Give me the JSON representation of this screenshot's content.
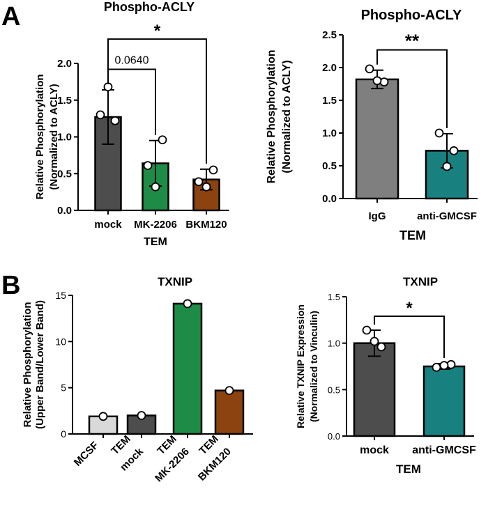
{
  "panel_labels": [
    "A",
    "B"
  ],
  "chart_data": [
    {
      "id": "a1",
      "type": "bar",
      "title": "Phospho-ACLY",
      "ylabel": "Relative Phosphorylation",
      "ylabel2": "(Normalized to ACLY)",
      "xlabel": "TEM",
      "categories": [
        "mock",
        "MK-2206",
        "BKM120"
      ],
      "values": [
        1.27,
        0.64,
        0.42
      ],
      "errors": [
        0.37,
        0.31,
        0.14
      ],
      "points": [
        [
          1.3,
          1.22,
          1.68
        ],
        [
          0.61,
          0.96,
          0.32
        ],
        [
          0.39,
          0.55,
          0.32
        ]
      ],
      "colors": [
        "#4d4d4d",
        "#1e8c46",
        "#8c4310"
      ],
      "ylim": [
        0,
        2.0
      ],
      "yticks": [
        "0.0",
        "0.5",
        "1.0",
        "1.5",
        "2.0"
      ],
      "yticks_values": [
        0,
        0.5,
        1.0,
        1.5,
        2.0
      ],
      "annotations": [
        {
          "from": 0,
          "to": 1,
          "text": "0.0640",
          "level": 1.92,
          "star": false
        },
        {
          "from": 0,
          "to": 2,
          "text": "*",
          "level": 2.33,
          "star": true
        }
      ]
    },
    {
      "id": "a2",
      "type": "bar",
      "title": "Phospho-ACLY",
      "ylabel": "Relative Phosphorylation",
      "ylabel2": "(Normalized to ACLY)",
      "xlabel": "TEM",
      "categories": [
        "IgG",
        "anti-GMCSF"
      ],
      "values": [
        1.82,
        0.73
      ],
      "errors": [
        0.14,
        0.26
      ],
      "points": [
        [
          1.98,
          1.78,
          1.8
        ],
        [
          1.0,
          0.73,
          0.49
        ]
      ],
      "colors": [
        "#7f7f7f",
        "#198080"
      ],
      "ylim": [
        0,
        2.5
      ],
      "yticks": [
        "0.0",
        "0.5",
        "1.0",
        "1.5",
        "2.0",
        "2.5"
      ],
      "yticks_values": [
        0,
        0.5,
        1.0,
        1.5,
        2.0,
        2.5
      ],
      "annotations": [
        {
          "from": 0,
          "to": 1,
          "text": "**",
          "level": 2.27,
          "star": true
        }
      ]
    },
    {
      "id": "b1",
      "type": "bar",
      "title": "TXNIP",
      "ylabel": "Relative Phosphorylation",
      "ylabel2": "(Upper Band/Lower Band)",
      "xlabel": "",
      "categories": [
        "MCSF",
        "TEM mock",
        "TEM MK-2206",
        "TEM BKM120"
      ],
      "category_lines": [
        [
          "MCSF"
        ],
        [
          "TEM",
          "mock"
        ],
        [
          "TEM",
          "MK-2206"
        ],
        [
          "TEM",
          "BKM120"
        ]
      ],
      "values": [
        1.9,
        2.0,
        14.1,
        4.7
      ],
      "errors": [
        0,
        0,
        0,
        0
      ],
      "points": [
        [
          1.9
        ],
        [
          2.0
        ],
        [
          14.1
        ],
        [
          4.7
        ]
      ],
      "colors": [
        "#d9d9d9",
        "#4d4d4d",
        "#1e8c46",
        "#8c4310"
      ],
      "ylim": [
        0,
        15
      ],
      "yticks": [
        "0",
        "5",
        "10",
        "15"
      ],
      "yticks_values": [
        0,
        5,
        10,
        15
      ],
      "annotations": []
    },
    {
      "id": "b2",
      "type": "bar",
      "title": "TXNIP",
      "ylabel": "Relative TXNIP Expression",
      "ylabel2": "(Normalized to Vinculin)",
      "xlabel": "TEM",
      "categories": [
        "mock",
        "anti-GMCSF"
      ],
      "values": [
        1.0,
        0.75
      ],
      "errors": [
        0.14,
        0.03
      ],
      "points": [
        [
          1.14,
          0.96,
          1.02
        ],
        [
          0.74,
          0.77,
          0.76
        ]
      ],
      "colors": [
        "#4d4d4d",
        "#198080"
      ],
      "ylim": [
        0,
        1.5
      ],
      "yticks": [
        "0.0",
        "0.5",
        "1.0",
        "1.5"
      ],
      "yticks_values": [
        0,
        0.5,
        1.0,
        1.5
      ],
      "annotations": [
        {
          "from": 0,
          "to": 1,
          "text": "*",
          "level": 1.29,
          "star": true
        }
      ]
    }
  ]
}
